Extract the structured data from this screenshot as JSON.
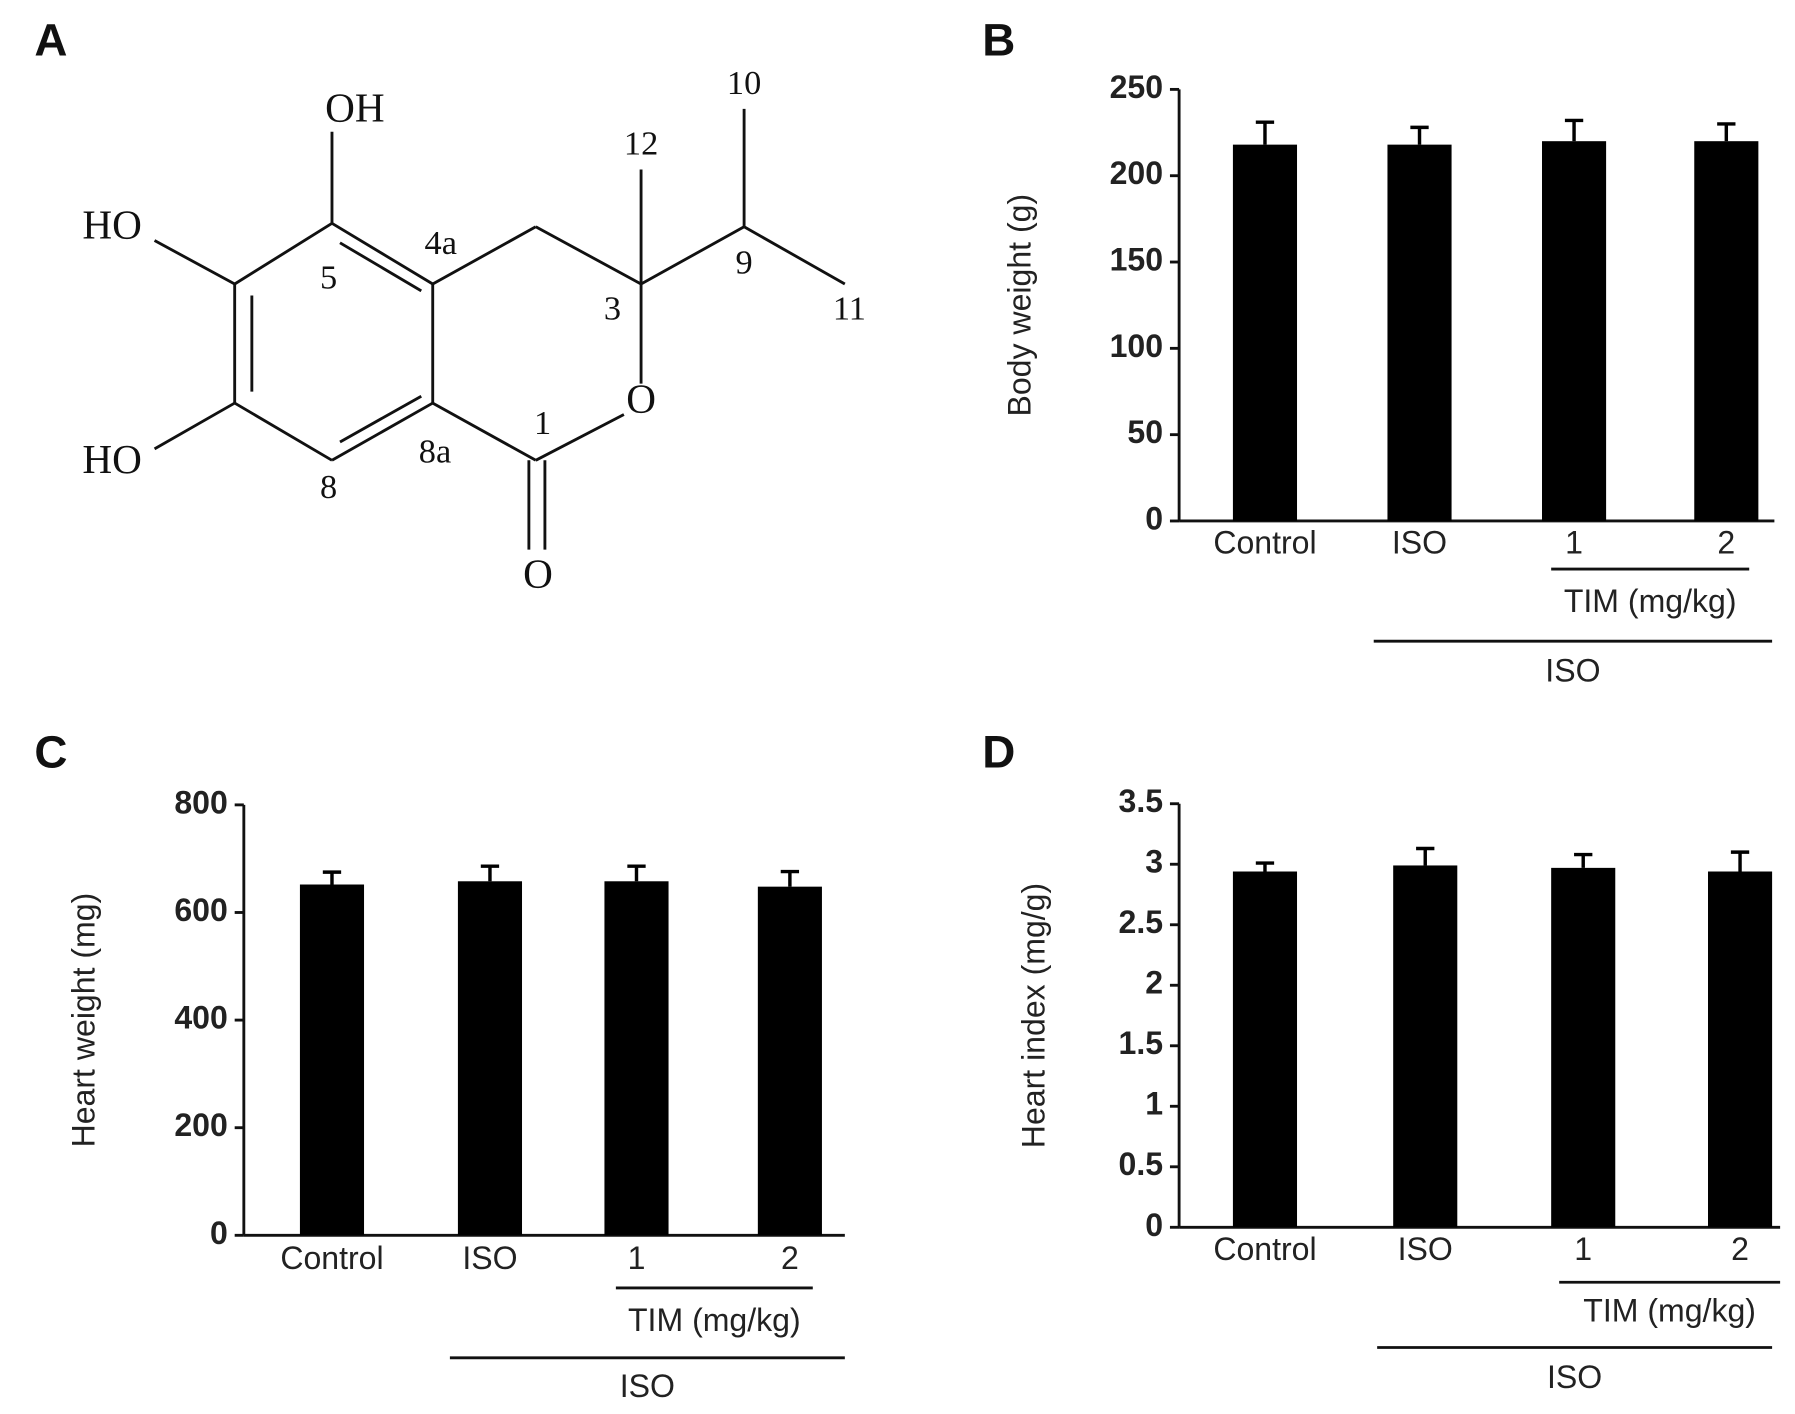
{
  "panel_labels": [
    "A",
    "B",
    "C",
    "D"
  ],
  "structure": {
    "labels": [
      "OH",
      "HO",
      "HO",
      "5",
      "4a",
      "3",
      "12",
      "10",
      "9",
      "11",
      "O",
      "1",
      "8a",
      "8",
      "O"
    ]
  },
  "chart_data": [
    {
      "type": "bar",
      "ylabel": "Body weight (g)",
      "categories": [
        "Control",
        "ISO",
        "1",
        "2"
      ],
      "values": [
        218,
        218,
        220,
        220
      ],
      "errors": [
        13,
        10,
        12,
        10
      ],
      "color": "#000000",
      "ylim": [
        0,
        250
      ],
      "yticks": [
        0,
        50,
        100,
        150,
        200,
        250
      ],
      "bracket_labels": [
        "TIM (mg/kg)",
        "ISO"
      ]
    },
    {
      "type": "bar",
      "ylabel": "Heart weight (mg)",
      "categories": [
        "Control",
        "ISO",
        "1",
        "2"
      ],
      "values": [
        652,
        658,
        658,
        648
      ],
      "errors": [
        23,
        28,
        28,
        28
      ],
      "color": "#000000",
      "ylim": [
        0,
        800
      ],
      "yticks": [
        0,
        200,
        400,
        600,
        800
      ],
      "bracket_labels": [
        "TIM (mg/kg)",
        "ISO"
      ]
    },
    {
      "type": "bar",
      "ylabel": "Heart index (mg/g)",
      "categories": [
        "Control",
        "ISO",
        "1",
        "2"
      ],
      "values": [
        2.94,
        2.99,
        2.97,
        2.94
      ],
      "errors": [
        0.07,
        0.14,
        0.11,
        0.16
      ],
      "color": "#000000",
      "ylim": [
        0,
        3.5
      ],
      "yticks": [
        0,
        0.5,
        1,
        1.5,
        2,
        2.5,
        3,
        3.5
      ],
      "bracket_labels": [
        "TIM (mg/kg)",
        "ISO"
      ]
    }
  ]
}
